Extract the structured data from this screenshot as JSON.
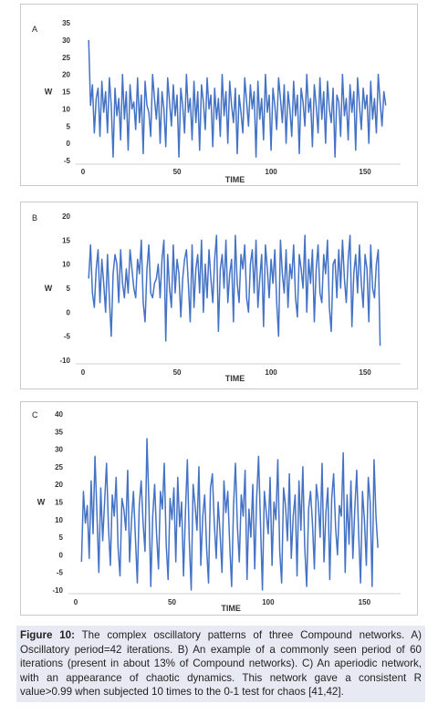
{
  "chart_data": [
    {
      "type": "line",
      "panel_label": "A",
      "xlabel": "TIME",
      "ylabel": "W",
      "ylim": [
        -5,
        35
      ],
      "yticks": [
        -5,
        0,
        5,
        10,
        15,
        20,
        25,
        30,
        35
      ],
      "xlim": [
        0,
        165
      ],
      "xticks": [
        0,
        50,
        100,
        150
      ],
      "color": "#4472c4",
      "x_start": 3,
      "values": [
        30,
        11,
        17,
        3,
        13,
        16,
        2,
        18,
        9,
        15,
        3,
        19,
        11,
        -4,
        16,
        8,
        13,
        1,
        20,
        7,
        15,
        -2,
        17,
        10,
        12,
        4,
        19,
        6,
        14,
        -3,
        18,
        11,
        9,
        2,
        20,
        13,
        7,
        16,
        0,
        15,
        10,
        -1,
        19,
        12,
        5,
        17,
        8,
        14,
        -4,
        16,
        11,
        3,
        20,
        9,
        13,
        1,
        18,
        6,
        15,
        -2,
        17,
        12,
        4,
        19,
        10,
        14,
        -1,
        16,
        7,
        13,
        2,
        20,
        8,
        15,
        0,
        18,
        11,
        6,
        16,
        -3,
        14,
        9,
        3,
        19,
        12,
        5,
        17,
        10,
        15,
        -4,
        18,
        7,
        13,
        1,
        20,
        9,
        14,
        -2,
        16,
        11,
        4,
        19,
        13,
        6,
        17,
        0,
        15,
        10,
        2,
        18,
        8,
        14,
        -3,
        16,
        12,
        5,
        20,
        9,
        13,
        -1,
        17,
        11,
        3,
        19,
        7,
        15,
        0,
        18,
        10,
        6,
        16,
        -4,
        14,
        12,
        2,
        20,
        8,
        13,
        1,
        17,
        9,
        15,
        -2,
        19,
        11,
        4,
        16,
        10,
        14,
        0,
        18,
        7,
        13,
        3,
        20,
        12,
        5,
        15,
        11
      ]
    },
    {
      "type": "line",
      "panel_label": "B",
      "xlabel": "TIME",
      "ylabel": "W",
      "ylim": [
        -10,
        20
      ],
      "yticks": [
        -10,
        -5,
        0,
        5,
        10,
        15,
        20
      ],
      "xlim": [
        0,
        165
      ],
      "xticks": [
        0,
        50,
        100,
        150
      ],
      "color": "#4472c4",
      "x_start": 3,
      "values": [
        7,
        14,
        4,
        1,
        9,
        13,
        2,
        11,
        6,
        0,
        12,
        3,
        -5,
        8,
        12,
        10,
        2,
        13,
        6,
        3,
        9,
        4,
        13,
        9,
        5,
        3,
        11,
        8,
        15,
        2,
        -2,
        9,
        14,
        4,
        3,
        6,
        7,
        10,
        3,
        11,
        15,
        -6,
        12,
        5,
        1,
        14,
        4,
        11,
        8,
        -1,
        7,
        11,
        13,
        6,
        -2,
        14,
        1,
        9,
        12,
        4,
        15,
        0,
        10,
        3,
        13,
        7,
        2,
        11,
        16,
        -4,
        9,
        12,
        5,
        15,
        2,
        8,
        11,
        -2,
        16,
        6,
        2,
        12,
        9,
        14,
        3,
        0,
        10,
        13,
        4,
        15,
        1,
        7,
        12,
        -3,
        14,
        9,
        3,
        11,
        6,
        13,
        2,
        -5,
        15,
        8,
        4,
        13,
        1,
        10,
        7,
        14,
        3,
        -1,
        12,
        9,
        5,
        16,
        0,
        11,
        6,
        13,
        -2,
        9,
        14,
        4,
        2,
        12,
        8,
        15,
        1,
        -4,
        10,
        11,
        3,
        13,
        5,
        15,
        7,
        2,
        11,
        16,
        -3,
        8,
        12,
        4,
        14,
        6,
        1,
        12,
        9,
        -2,
        14,
        5,
        3,
        10,
        13,
        -7
      ]
    },
    {
      "type": "line",
      "panel_label": "C",
      "xlabel": "TIME",
      "ylabel": "W",
      "ylim": [
        -10,
        40
      ],
      "yticks": [
        -10,
        -5,
        0,
        5,
        10,
        15,
        20,
        25,
        30,
        35,
        40
      ],
      "xlim": [
        0,
        165
      ],
      "xticks": [
        0,
        50,
        100,
        150
      ],
      "color": "#4472c4",
      "x_start": 3,
      "values": [
        -2,
        18,
        9,
        14,
        -1,
        21,
        6,
        28,
        12,
        -5,
        19,
        4,
        15,
        26,
        8,
        -3,
        17,
        11,
        22,
        2,
        -6,
        16,
        13,
        7,
        24,
        -2,
        10,
        18,
        5,
        -8,
        14,
        21,
        9,
        1,
        33,
        15,
        -9,
        11,
        20,
        6,
        -4,
        18,
        13,
        26,
        3,
        -7,
        16,
        10,
        19,
        -2,
        22,
        8,
        15,
        -6,
        12,
        27,
        4,
        -10,
        20,
        14,
        7,
        25,
        -3,
        11,
        17,
        2,
        -8,
        19,
        23,
        9,
        -1,
        15,
        6,
        -5,
        21,
        12,
        18,
        3,
        -9,
        14,
        26,
        8,
        -2,
        17,
        11,
        24,
        -7,
        13,
        5,
        20,
        -4,
        16,
        28,
        9,
        -10,
        18,
        12,
        6,
        22,
        -3,
        15,
        10,
        27,
        1,
        -8,
        19,
        14,
        4,
        23,
        -1,
        11,
        17,
        -6,
        21,
        7,
        25,
        2,
        -9,
        13,
        18,
        9,
        -4,
        20,
        15,
        5,
        26,
        -2,
        12,
        19,
        -7,
        16,
        23,
        8,
        0,
        14,
        11,
        29,
        -5,
        17,
        3,
        21,
        -1,
        13,
        24,
        6,
        -8,
        18,
        10,
        -3,
        22,
        15,
        -9,
        27,
        11,
        2
      ]
    }
  ],
  "caption": {
    "label": "Figure 10:",
    "text": " The complex oscillatory patterns of three Compound networks. A) Oscillatory period=42 iterations. B) An example of a commonly seen period of 60 iterations (present in about 13% of Compound networks). C) An aperiodic network, with an appearance of chaotic dynamics. This network gave a consistent R value>0.99 when subjected 10 times to the 0-1 test for chaos [41,42]."
  }
}
